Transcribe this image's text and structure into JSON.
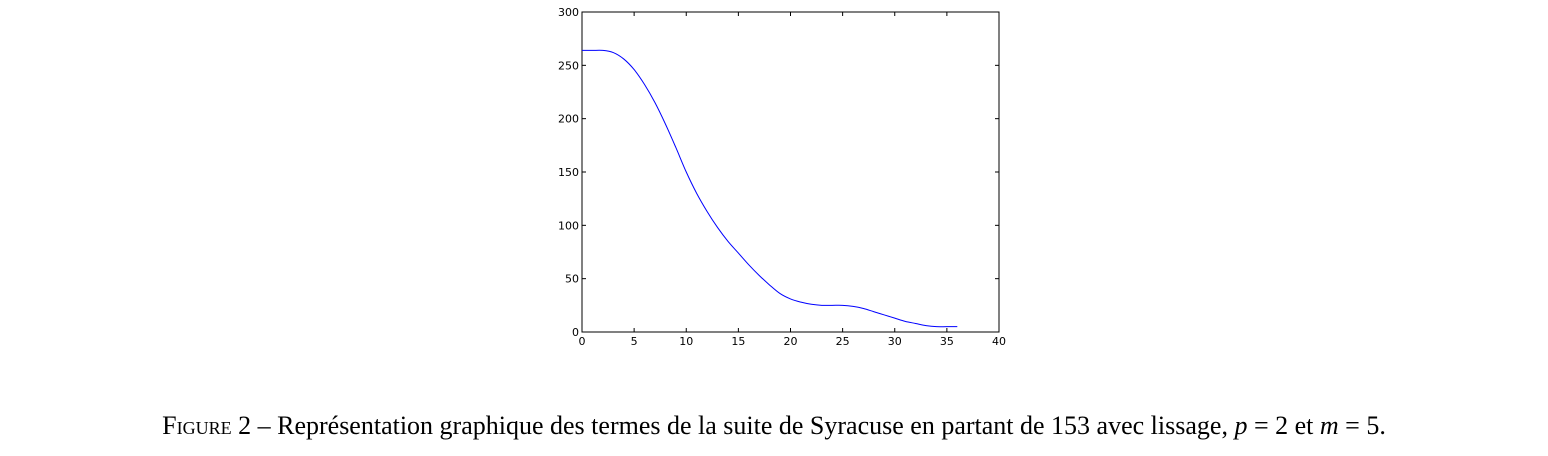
{
  "caption": {
    "label": "Figure",
    "number": "2",
    "dash": "–",
    "text": "Représentation graphique des termes de la suite de Syracuse en partant de 153 avec lissage,",
    "p_symbol": "p",
    "p_eq": "= 2",
    "et": "et",
    "m_symbol": "m",
    "m_eq": "= 5."
  },
  "chart_data": {
    "type": "line",
    "title": "",
    "xlabel": "",
    "ylabel": "",
    "xlim": [
      0,
      40
    ],
    "ylim": [
      0,
      300
    ],
    "xticks": [
      0,
      5,
      10,
      15,
      20,
      25,
      30,
      35,
      40
    ],
    "yticks": [
      0,
      50,
      100,
      150,
      200,
      250,
      300
    ],
    "grid": false,
    "legend": "none",
    "series": [
      {
        "color": "#0000ff",
        "x": [
          0,
          1,
          2,
          3,
          4,
          5,
          6,
          7,
          8,
          9,
          10,
          11,
          12,
          13,
          14,
          15,
          16,
          17,
          18,
          19,
          20,
          21,
          22,
          23,
          24,
          25,
          26,
          27,
          28,
          29,
          30,
          31,
          32,
          33,
          34,
          35,
          36
        ],
        "y": [
          264,
          264,
          264,
          262,
          256,
          246,
          232,
          215,
          195,
          173,
          150,
          130,
          113,
          98,
          85,
          74,
          63,
          53,
          44,
          36,
          31,
          28,
          26,
          25,
          25,
          25,
          24,
          22,
          19,
          16,
          13,
          10,
          8,
          6,
          5,
          5,
          5
        ]
      }
    ]
  }
}
